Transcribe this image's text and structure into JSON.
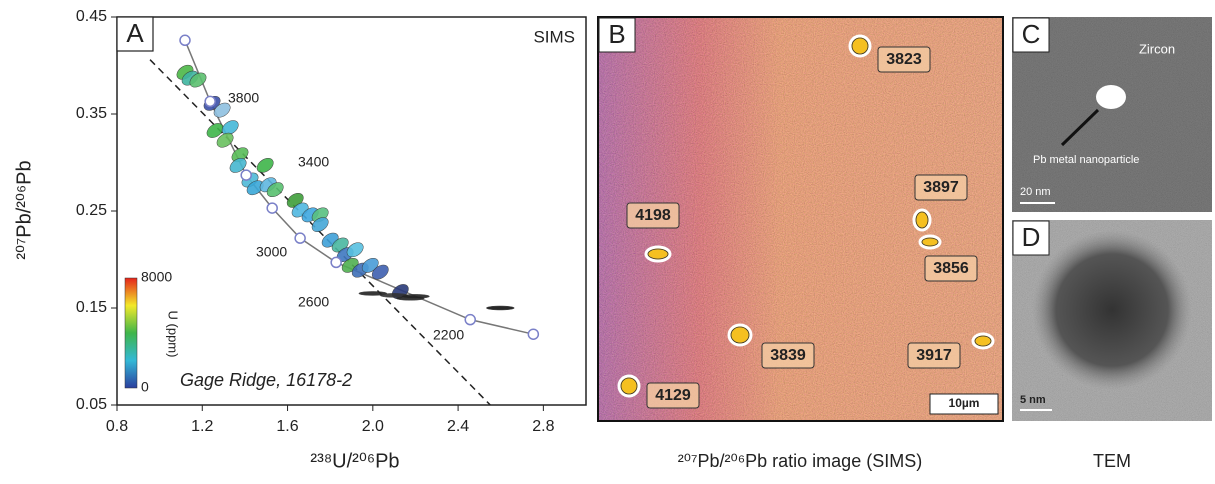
{
  "chart_data": {
    "type": "scatter",
    "title": "SIMS",
    "panel_label": "A",
    "annotation": "Gage Ridge, 16178-2",
    "x_label": "²³⁸U/²⁰⁶Pb",
    "y_label": "²⁰⁷Pb/²⁰⁶Pb",
    "xlim": [
      0.8,
      3.0
    ],
    "ylim": [
      0.05,
      0.45
    ],
    "xticks": [
      0.8,
      1.2,
      1.6,
      {
        "value": 2.0,
        "label": "2.0"
      },
      2.4,
      2.8
    ],
    "yticks": [
      0.05,
      0.15,
      0.25,
      0.35,
      0.45
    ],
    "age_labels": [
      "3800",
      "3400",
      "3000",
      "2600",
      "2200"
    ],
    "series": [
      {
        "type": "line",
        "markers": true,
        "color": "#777777",
        "x": [
          1.119,
          1.237,
          1.406,
          1.528,
          1.659,
          1.828,
          2.457,
          2.753
        ],
        "values": [
          0.426,
          0.363,
          0.287,
          0.253,
          0.222,
          0.197,
          0.138,
          0.123
        ]
      },
      {
        "type": "line",
        "dashed": true,
        "color": "#222222",
        "x": [
          0.955,
          2.551
        ],
        "values": [
          0.406,
          0.05
        ]
      },
      {
        "type": "scatter",
        "x": [
          1.119,
          1.143,
          1.18,
          1.246,
          1.293,
          1.26,
          1.331,
          1.307,
          1.377,
          1.368,
          1.424,
          1.448,
          1.509,
          1.542,
          1.636,
          1.659,
          1.706,
          1.753,
          1.495,
          1.753,
          1.8,
          1.847,
          1.87,
          1.917,
          1.894,
          1.941,
          1.988,
          2.035,
          2.129,
          2.176,
          2.0,
          2.1,
          2.2,
          2.598
        ],
        "values": [
          0.393,
          0.387,
          0.385,
          0.361,
          0.354,
          0.333,
          0.336,
          0.323,
          0.308,
          0.297,
          0.282,
          0.274,
          0.277,
          0.272,
          0.261,
          0.251,
          0.246,
          0.246,
          0.297,
          0.236,
          0.22,
          0.215,
          0.205,
          0.21,
          0.194,
          0.189,
          0.194,
          0.187,
          0.167,
          0.16,
          0.165,
          0.163,
          0.162,
          0.15
        ],
        "colors": [
          "#4cb848",
          "#3fb5a0",
          "#5cc070",
          "#3a4fa8",
          "#8fc0e0",
          "#3fb54a",
          "#45b8d8",
          "#6ac060",
          "#58bc58",
          "#46b8d0",
          "#4ebad8",
          "#3aa8d8",
          "#60b8e0",
          "#58c070",
          "#3f9e3a",
          "#50b8e0",
          "#3fa8e0",
          "#58c080",
          "#3fb54a",
          "#46a8d8",
          "#3fa0d8",
          "#4ab8a0",
          "#3f78c0",
          "#58c0e0",
          "#50b050",
          "#3f70b8",
          "#4a9cd8",
          "#3f60b0",
          "#2a3a7a",
          "#222222",
          "#222222",
          "#333333",
          "#222222",
          "#111111"
        ]
      }
    ],
    "colorbar": {
      "label": "U (ppm)",
      "ticks": [
        0,
        8000
      ],
      "colors": [
        "#2b3f9e",
        "#33b8d6",
        "#3fb54a",
        "#f3e92a",
        "#e4241b"
      ]
    }
  },
  "panels": [
    {
      "label": "B",
      "spots": [
        "3823",
        "3897",
        "4198",
        "3856",
        "3839",
        "3917",
        "4129"
      ],
      "scale": "10µm",
      "caption": "²⁰⁷Pb/²⁰⁶Pb ratio image (SIMS)"
    },
    {
      "label": "C",
      "texts": [
        "Zircon",
        "Pb metal nanoparticle"
      ],
      "scale": "20 nm",
      "caption": "TEM"
    },
    {
      "label": "D",
      "scale": "5 nm"
    }
  ]
}
